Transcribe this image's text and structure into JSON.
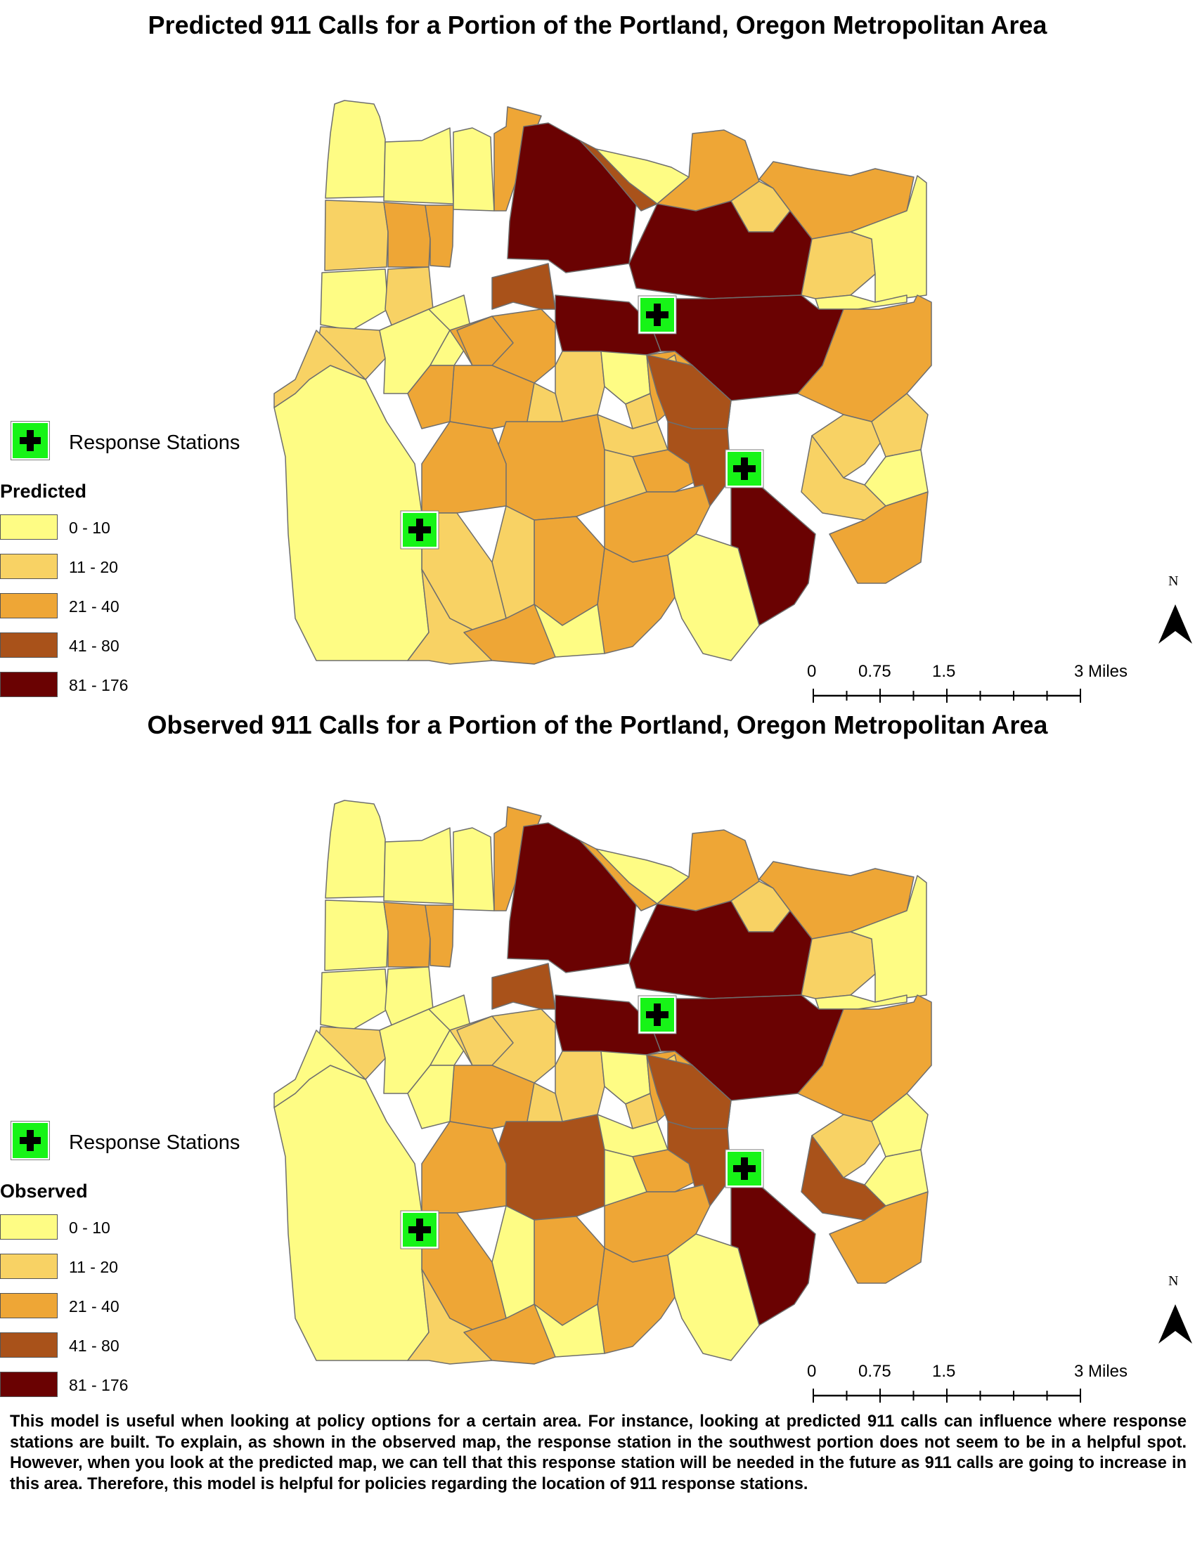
{
  "titles": {
    "predicted": "Predicted 911 Calls for a Portion of the Portland, Oregon Metropolitan Area",
    "observed": "Observed 911 Calls for a Portion of the Portland, Oregon Metropolitan Area"
  },
  "legend": {
    "stations_label": "Response Stations",
    "predicted_heading": "Predicted",
    "observed_heading": "Observed",
    "classes": [
      {
        "label": "0 - 10",
        "color": "#fefc84"
      },
      {
        "label": "11 - 20",
        "color": "#f8d264"
      },
      {
        "label": "21 - 40",
        "color": "#eea636"
      },
      {
        "label": "41 - 80",
        "color": "#a9521a"
      },
      {
        "label": "81 - 176",
        "color": "#6a0202"
      }
    ]
  },
  "scale": {
    "labels": [
      "0",
      "0.75",
      "1.5",
      "3 Miles"
    ]
  },
  "north_label": "N",
  "caption": "This model is useful when looking at policy options for a certain area. For instance, looking at predicted 911 calls can influence where response stations are built. To explain, as shown in the observed map, the response station in the southwest portion does not seem to be in a helpful spot. However, when you look at the predicted map, we can tell that this response station will be needed in the future as 911 calls are going to increase in this area. Therefore, this model is helpful for policies regarding the location of 911 response stations.",
  "colors": {
    "boundary": "#6e6e6e",
    "station_fill": "#17f417"
  },
  "map_data": {
    "predicted": {
      "regions": [
        {
          "id": "far-west-1",
          "class": 0
        },
        {
          "id": "far-west-2",
          "class": 0
        },
        {
          "id": "far-west-3",
          "class": 1
        },
        {
          "id": "far-west-4",
          "class": 2
        },
        {
          "id": "far-west-5",
          "class": 2
        },
        {
          "id": "far-west-6",
          "class": 0
        },
        {
          "id": "west-block-a",
          "class": 1
        },
        {
          "id": "west-block-b",
          "class": 1
        },
        {
          "id": "west-block-c",
          "class": 0
        },
        {
          "id": "west-block-d",
          "class": 0
        },
        {
          "id": "north-a",
          "class": 0
        },
        {
          "id": "north-b",
          "class": 2
        },
        {
          "id": "north-c",
          "class": 4
        },
        {
          "id": "north-d",
          "class": 3
        },
        {
          "id": "north-e",
          "class": 0
        },
        {
          "id": "north-f",
          "class": 2
        },
        {
          "id": "north-g",
          "class": 1
        },
        {
          "id": "north-h",
          "class": 2
        },
        {
          "id": "north-i",
          "class": 4
        },
        {
          "id": "northeast-a",
          "class": 1
        },
        {
          "id": "northeast-b",
          "class": 0
        },
        {
          "id": "northeast-c",
          "class": 0
        },
        {
          "id": "central-a",
          "class": 2
        },
        {
          "id": "central-b",
          "class": 2
        },
        {
          "id": "central-c",
          "class": 2
        },
        {
          "id": "central-d",
          "class": 2
        },
        {
          "id": "central-e",
          "class": 3
        },
        {
          "id": "central-f",
          "class": 4
        },
        {
          "id": "central-g",
          "class": 4
        },
        {
          "id": "central-h",
          "class": 1
        },
        {
          "id": "central-i",
          "class": 1
        },
        {
          "id": "central-j",
          "class": 0
        },
        {
          "id": "central-k",
          "class": 1
        },
        {
          "id": "central-l",
          "class": 2
        },
        {
          "id": "central-m",
          "class": 1
        },
        {
          "id": "central-n",
          "class": 2
        },
        {
          "id": "central-o",
          "class": 3
        },
        {
          "id": "east-a",
          "class": 2
        },
        {
          "id": "east-b",
          "class": 1
        },
        {
          "id": "east-c",
          "class": 1
        },
        {
          "id": "east-d",
          "class": 0
        },
        {
          "id": "east-e",
          "class": 1
        },
        {
          "id": "east-f",
          "class": 2
        },
        {
          "id": "south-a",
          "class": 2
        },
        {
          "id": "south-b",
          "class": 2
        },
        {
          "id": "south-c",
          "class": 1
        },
        {
          "id": "south-d",
          "class": 2
        },
        {
          "id": "south-e",
          "class": 3
        },
        {
          "id": "south-f",
          "class": 4
        },
        {
          "id": "south-g",
          "class": 2
        },
        {
          "id": "south-h",
          "class": 1
        },
        {
          "id": "south-i",
          "class": 2
        },
        {
          "id": "south-j",
          "class": 0
        },
        {
          "id": "south-k",
          "class": 2
        },
        {
          "id": "south-l",
          "class": 1
        },
        {
          "id": "south-m",
          "class": 1
        },
        {
          "id": "south-n",
          "class": 0
        },
        {
          "id": "southwest-a",
          "class": 0
        },
        {
          "id": "southwest-b",
          "class": 1
        },
        {
          "id": "southwest-c",
          "class": 1
        },
        {
          "id": "southwest-d",
          "class": 2
        }
      ]
    },
    "observed": {
      "regions": [
        {
          "id": "far-west-1",
          "class": 0
        },
        {
          "id": "far-west-2",
          "class": 0
        },
        {
          "id": "far-west-3",
          "class": 0
        },
        {
          "id": "far-west-4",
          "class": 2
        },
        {
          "id": "far-west-5",
          "class": 2
        },
        {
          "id": "far-west-6",
          "class": 0
        },
        {
          "id": "west-block-a",
          "class": 0
        },
        {
          "id": "west-block-b",
          "class": 1
        },
        {
          "id": "west-block-c",
          "class": 0
        },
        {
          "id": "west-block-d",
          "class": 0
        },
        {
          "id": "north-a",
          "class": 0
        },
        {
          "id": "north-b",
          "class": 2
        },
        {
          "id": "north-c",
          "class": 4
        },
        {
          "id": "north-d",
          "class": 2
        },
        {
          "id": "north-e",
          "class": 0
        },
        {
          "id": "north-f",
          "class": 2
        },
        {
          "id": "north-g",
          "class": 1
        },
        {
          "id": "north-h",
          "class": 2
        },
        {
          "id": "north-i",
          "class": 4
        },
        {
          "id": "northeast-a",
          "class": 1
        },
        {
          "id": "northeast-b",
          "class": 0
        },
        {
          "id": "northeast-c",
          "class": 0
        },
        {
          "id": "central-a",
          "class": 1
        },
        {
          "id": "central-b",
          "class": 1
        },
        {
          "id": "central-c",
          "class": 2
        },
        {
          "id": "central-d",
          "class": 0
        },
        {
          "id": "central-e",
          "class": 3
        },
        {
          "id": "central-f",
          "class": 4
        },
        {
          "id": "central-g",
          "class": 4
        },
        {
          "id": "central-h",
          "class": 1
        },
        {
          "id": "central-i",
          "class": 1
        },
        {
          "id": "central-j",
          "class": 0
        },
        {
          "id": "central-k",
          "class": 1
        },
        {
          "id": "central-l",
          "class": 2
        },
        {
          "id": "central-m",
          "class": 1
        },
        {
          "id": "central-n",
          "class": 2
        },
        {
          "id": "central-o",
          "class": 3
        },
        {
          "id": "east-a",
          "class": 2
        },
        {
          "id": "east-b",
          "class": 1
        },
        {
          "id": "east-c",
          "class": 0
        },
        {
          "id": "east-d",
          "class": 0
        },
        {
          "id": "east-e",
          "class": 3
        },
        {
          "id": "east-f",
          "class": 2
        },
        {
          "id": "south-a",
          "class": 3
        },
        {
          "id": "south-b",
          "class": 2
        },
        {
          "id": "south-c",
          "class": 0
        },
        {
          "id": "south-d",
          "class": 2
        },
        {
          "id": "south-e",
          "class": 3
        },
        {
          "id": "south-f",
          "class": 4
        },
        {
          "id": "south-g",
          "class": 2
        },
        {
          "id": "south-h",
          "class": 0
        },
        {
          "id": "south-i",
          "class": 2
        },
        {
          "id": "south-j",
          "class": 0
        },
        {
          "id": "south-k",
          "class": 2
        },
        {
          "id": "south-l",
          "class": 0
        },
        {
          "id": "south-m",
          "class": 2
        },
        {
          "id": "south-n",
          "class": 0
        },
        {
          "id": "southwest-a",
          "class": 0
        },
        {
          "id": "southwest-b",
          "class": 0
        },
        {
          "id": "southwest-c",
          "class": 1
        },
        {
          "id": "southwest-d",
          "class": 2
        }
      ]
    }
  }
}
